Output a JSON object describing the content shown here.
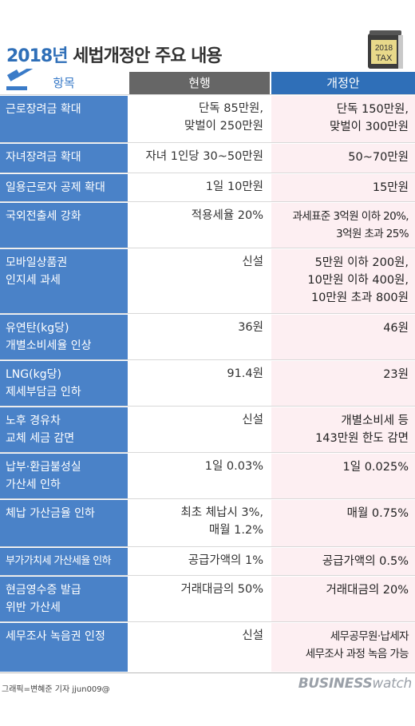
{
  "title": {
    "year": "2018년",
    "rest": " 세법개정안 주요 내용"
  },
  "badge": {
    "line1": "2018",
    "line2": "TAX"
  },
  "headers": {
    "item": "항목",
    "current": "현행",
    "revised": "개정안"
  },
  "rows": [
    {
      "item": "근로장려금 확대",
      "current": "단독 85만원,\n맞벌이 250만원",
      "revised": "단독 150만원,\n맞벌이 300만원"
    },
    {
      "item": "자녀장려금 확대",
      "current": "자녀 1인당 30~50만원",
      "revised": "50~70만원"
    },
    {
      "item": "일용근로자 공제 확대",
      "current": "1일 10만원",
      "revised": "15만원"
    },
    {
      "item": "국외전출세 강화",
      "current": "적용세율 20%",
      "revised": "과세표준 3억원 이하 20%,\n3억원 초과 25%"
    },
    {
      "item": "모바일상품권\n인지세 과세",
      "current": "신설",
      "revised": "5만원 이하 200원,\n10만원 이하 400원,\n10만원 초과 800원"
    },
    {
      "item": "유연탄(kg당)\n개별소비세율 인상",
      "current": "36원",
      "revised": "46원"
    },
    {
      "item": "LNG(kg당)\n제세부담금 인하",
      "current": "91.4원",
      "revised": "23원"
    },
    {
      "item": "노후 경유차\n교체 세금 감면",
      "current": "신설",
      "revised": "개별소비세 등\n143만원 한도 감면"
    },
    {
      "item": "납부·환급불성실\n가산세 인하",
      "current": "1일 0.03%",
      "revised": "1일 0.025%"
    },
    {
      "item": "체납 가산금율 인하",
      "current": "최초 체납시 3%,\n매월 1.2%",
      "revised": "매월 0.75%"
    },
    {
      "item": "부가가치세 가산세율 인하",
      "current": "공급가액의 1%",
      "revised": "공급가액의 0.5%"
    },
    {
      "item": "현금영수증 발급\n위반 가산세",
      "current": "거래대금의 50%",
      "revised": "거래대금의 20%"
    },
    {
      "item": "세무조사 녹음권 인정",
      "current": "신설",
      "revised": "세무공무원·납세자\n세무조사 과정 녹음 가능"
    }
  ],
  "footer": {
    "credit": "그래픽=변혜준 기자 jjun009@",
    "brand_a": "BUSINESS",
    "brand_b": "watch"
  },
  "colors": {
    "accent_blue": "#2f6fb8",
    "item_blue": "#4a82c8",
    "current_gray": "#666666",
    "revised_pink": "#fdeff2"
  },
  "icons": [
    "gavel-icon",
    "tax-book-icon"
  ]
}
